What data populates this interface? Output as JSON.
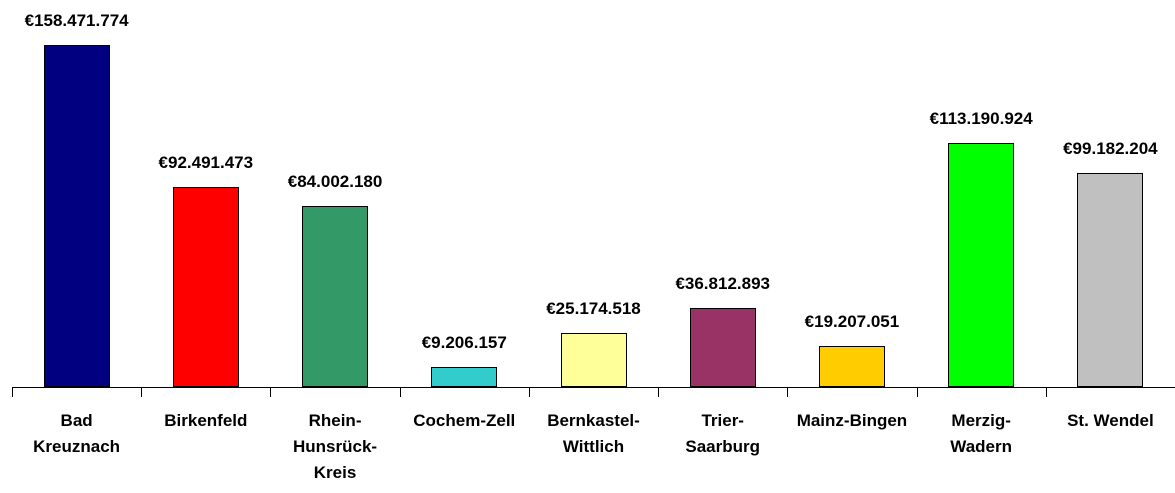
{
  "chart_data": {
    "type": "bar",
    "categories": [
      "Bad Kreuznach",
      "Birkenfeld",
      "Rhein-Hunsrück-Kreis",
      "Cochem-Zell",
      "Bernkastel-Wittlich",
      "Trier-Saarburg",
      "Mainz-Bingen",
      "Merzig-Wadern",
      "St. Wendel"
    ],
    "values": [
      158471774,
      92491473,
      84002180,
      9206157,
      25174518,
      36812893,
      19207051,
      113190924,
      99182204
    ],
    "value_labels": [
      "€158.471.774",
      "€92.491.473",
      "€84.002.180",
      "€9.206.157",
      "€25.174.518",
      "€36.812.893",
      "€19.207.051",
      "€113.190.924",
      "€99.182.204"
    ],
    "colors": [
      "#000080",
      "#ff0000",
      "#339966",
      "#33cccc",
      "#ffff99",
      "#993366",
      "#ffcc00",
      "#00ff00",
      "#c0c0c0"
    ]
  }
}
